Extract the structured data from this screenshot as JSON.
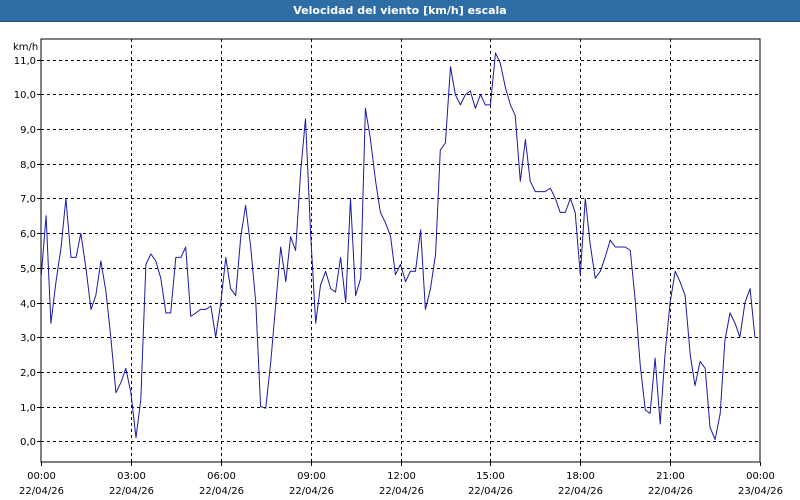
{
  "title": "Velocidad del viento [km/h] escala",
  "chart_data": {
    "type": "line",
    "title": "Velocidad del viento [km/h] escala",
    "ylabel": "km/h",
    "xlabel": "",
    "ylim": [
      -0.6,
      11.6
    ],
    "xlim": [
      0,
      24
    ],
    "grid": true,
    "yticks": [
      {
        "v": 0,
        "label": "0,0"
      },
      {
        "v": 1,
        "label": "1,0"
      },
      {
        "v": 2,
        "label": "2,0"
      },
      {
        "v": 3,
        "label": "3,0"
      },
      {
        "v": 4,
        "label": "4,0"
      },
      {
        "v": 5,
        "label": "5,0"
      },
      {
        "v": 6,
        "label": "6,0"
      },
      {
        "v": 7,
        "label": "7,0"
      },
      {
        "v": 8,
        "label": "8,0"
      },
      {
        "v": 9,
        "label": "9,0"
      },
      {
        "v": 10,
        "label": "10,0"
      },
      {
        "v": 11,
        "label": "11,0"
      }
    ],
    "xticks": [
      {
        "h": 0,
        "time": "00:00",
        "date": "22/04/26"
      },
      {
        "h": 3,
        "time": "03:00",
        "date": "22/04/26"
      },
      {
        "h": 6,
        "time": "06:00",
        "date": "22/04/26"
      },
      {
        "h": 9,
        "time": "09:00",
        "date": "22/04/26"
      },
      {
        "h": 12,
        "time": "12:00",
        "date": "22/04/26"
      },
      {
        "h": 15,
        "time": "15:00",
        "date": "22/04/26"
      },
      {
        "h": 18,
        "time": "18:00",
        "date": "22/04/26"
      },
      {
        "h": 21,
        "time": "21:00",
        "date": "22/04/26"
      },
      {
        "h": 24,
        "time": "00:00",
        "date": "23/04/26"
      }
    ],
    "series": [
      {
        "color": "#1a1aa8",
        "points": [
          [
            0.0,
            4.7
          ],
          [
            0.17,
            6.5
          ],
          [
            0.33,
            3.4
          ],
          [
            0.5,
            4.6
          ],
          [
            0.67,
            5.6
          ],
          [
            0.83,
            7.0
          ],
          [
            1.0,
            5.3
          ],
          [
            1.17,
            5.3
          ],
          [
            1.33,
            6.0
          ],
          [
            1.5,
            5.0
          ],
          [
            1.67,
            3.8
          ],
          [
            1.83,
            4.2
          ],
          [
            2.0,
            5.2
          ],
          [
            2.17,
            4.3
          ],
          [
            2.33,
            3.0
          ],
          [
            2.5,
            1.4
          ],
          [
            2.67,
            1.7
          ],
          [
            2.83,
            2.1
          ],
          [
            3.0,
            1.4
          ],
          [
            3.17,
            0.1
          ],
          [
            3.33,
            1.2
          ],
          [
            3.5,
            5.1
          ],
          [
            3.67,
            5.4
          ],
          [
            3.83,
            5.2
          ],
          [
            4.0,
            4.7
          ],
          [
            4.17,
            3.7
          ],
          [
            4.33,
            3.7
          ],
          [
            4.5,
            5.3
          ],
          [
            4.67,
            5.3
          ],
          [
            4.83,
            5.6
          ],
          [
            5.0,
            3.6
          ],
          [
            5.17,
            3.7
          ],
          [
            5.33,
            3.8
          ],
          [
            5.5,
            3.8
          ],
          [
            5.67,
            3.9
          ],
          [
            5.83,
            3.0
          ],
          [
            6.0,
            4.0
          ],
          [
            6.17,
            5.3
          ],
          [
            6.33,
            4.4
          ],
          [
            6.5,
            4.2
          ],
          [
            6.67,
            5.9
          ],
          [
            6.83,
            6.8
          ],
          [
            7.0,
            5.6
          ],
          [
            7.17,
            4.0
          ],
          [
            7.33,
            1.0
          ],
          [
            7.5,
            0.95
          ],
          [
            7.67,
            2.3
          ],
          [
            7.83,
            3.9
          ],
          [
            8.0,
            5.6
          ],
          [
            8.17,
            4.6
          ],
          [
            8.33,
            5.9
          ],
          [
            8.5,
            5.5
          ],
          [
            8.67,
            7.8
          ],
          [
            8.83,
            9.3
          ],
          [
            9.0,
            6.0
          ],
          [
            9.17,
            3.4
          ],
          [
            9.33,
            4.5
          ],
          [
            9.5,
            4.9
          ],
          [
            9.67,
            4.4
          ],
          [
            9.83,
            4.3
          ],
          [
            10.0,
            5.3
          ],
          [
            10.17,
            4.0
          ],
          [
            10.33,
            7.0
          ],
          [
            10.5,
            4.2
          ],
          [
            10.67,
            4.7
          ],
          [
            10.83,
            9.6
          ],
          [
            11.0,
            8.7
          ],
          [
            11.17,
            7.5
          ],
          [
            11.33,
            6.6
          ],
          [
            11.5,
            6.3
          ],
          [
            11.67,
            5.9
          ],
          [
            11.83,
            4.8
          ],
          [
            12.0,
            5.1
          ],
          [
            12.17,
            4.6
          ],
          [
            12.33,
            4.9
          ],
          [
            12.5,
            4.9
          ],
          [
            12.67,
            6.1
          ],
          [
            12.83,
            3.8
          ],
          [
            13.0,
            4.4
          ],
          [
            13.17,
            5.4
          ],
          [
            13.33,
            8.4
          ],
          [
            13.5,
            8.6
          ],
          [
            13.67,
            10.8
          ],
          [
            13.83,
            10.0
          ],
          [
            14.0,
            9.7
          ],
          [
            14.17,
            10.0
          ],
          [
            14.33,
            10.1
          ],
          [
            14.5,
            9.6
          ],
          [
            14.67,
            10.0
          ],
          [
            14.83,
            9.7
          ],
          [
            15.0,
            9.7
          ],
          [
            15.17,
            11.2
          ],
          [
            15.33,
            10.9
          ],
          [
            15.5,
            10.2
          ],
          [
            15.67,
            9.7
          ],
          [
            15.83,
            9.4
          ],
          [
            16.0,
            7.5
          ],
          [
            16.17,
            8.7
          ],
          [
            16.33,
            7.5
          ],
          [
            16.5,
            7.2
          ],
          [
            16.67,
            7.2
          ],
          [
            16.83,
            7.2
          ],
          [
            17.0,
            7.3
          ],
          [
            17.17,
            7.0
          ],
          [
            17.33,
            6.6
          ],
          [
            17.5,
            6.6
          ],
          [
            17.67,
            7.0
          ],
          [
            17.83,
            6.6
          ],
          [
            18.0,
            4.8
          ],
          [
            18.17,
            7.0
          ],
          [
            18.33,
            5.7
          ],
          [
            18.5,
            4.7
          ],
          [
            18.67,
            4.9
          ],
          [
            18.83,
            5.3
          ],
          [
            19.0,
            5.8
          ],
          [
            19.17,
            5.6
          ],
          [
            19.33,
            5.6
          ],
          [
            19.5,
            5.6
          ],
          [
            19.67,
            5.5
          ],
          [
            19.83,
            4.1
          ],
          [
            20.0,
            2.2
          ],
          [
            20.17,
            0.9
          ],
          [
            20.33,
            0.8
          ],
          [
            20.5,
            2.4
          ],
          [
            20.67,
            0.5
          ],
          [
            20.83,
            2.5
          ],
          [
            21.0,
            4.0
          ],
          [
            21.17,
            4.9
          ],
          [
            21.33,
            4.6
          ],
          [
            21.5,
            4.2
          ],
          [
            21.67,
            2.5
          ],
          [
            21.83,
            1.6
          ],
          [
            22.0,
            2.3
          ],
          [
            22.17,
            2.1
          ],
          [
            22.33,
            0.4
          ],
          [
            22.5,
            0.05
          ],
          [
            22.67,
            0.8
          ],
          [
            22.83,
            2.9
          ],
          [
            23.0,
            3.7
          ],
          [
            23.17,
            3.4
          ],
          [
            23.33,
            3.0
          ],
          [
            23.5,
            4.0
          ],
          [
            23.67,
            4.4
          ],
          [
            23.83,
            3.0
          ]
        ]
      }
    ]
  }
}
